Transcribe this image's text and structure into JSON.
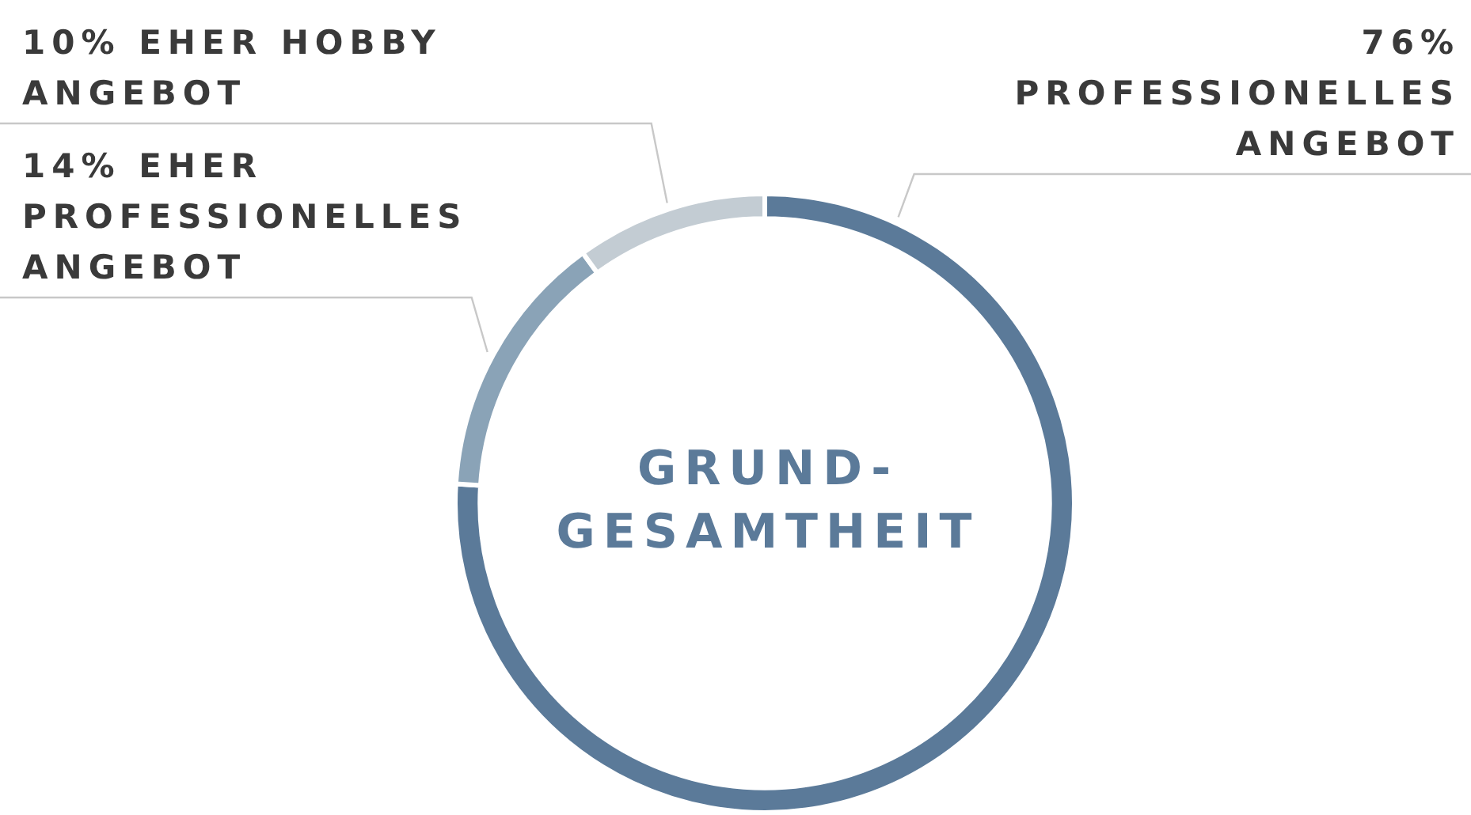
{
  "chart_data": {
    "type": "donut",
    "title": "GRUND-GESAMTHEIT",
    "categories": [
      "PROFESSIONELLES ANGEBOT",
      "EHER PROFESSIONELLES ANGEBOT",
      "EHER HOBBY ANGEBOT"
    ],
    "values": [
      76,
      14,
      10
    ],
    "value_labels": [
      "76%",
      "14%",
      "10%"
    ],
    "colors": [
      "#5b7a99",
      "#8aa3b7",
      "#c3ccd3"
    ],
    "legend": false
  }
}
